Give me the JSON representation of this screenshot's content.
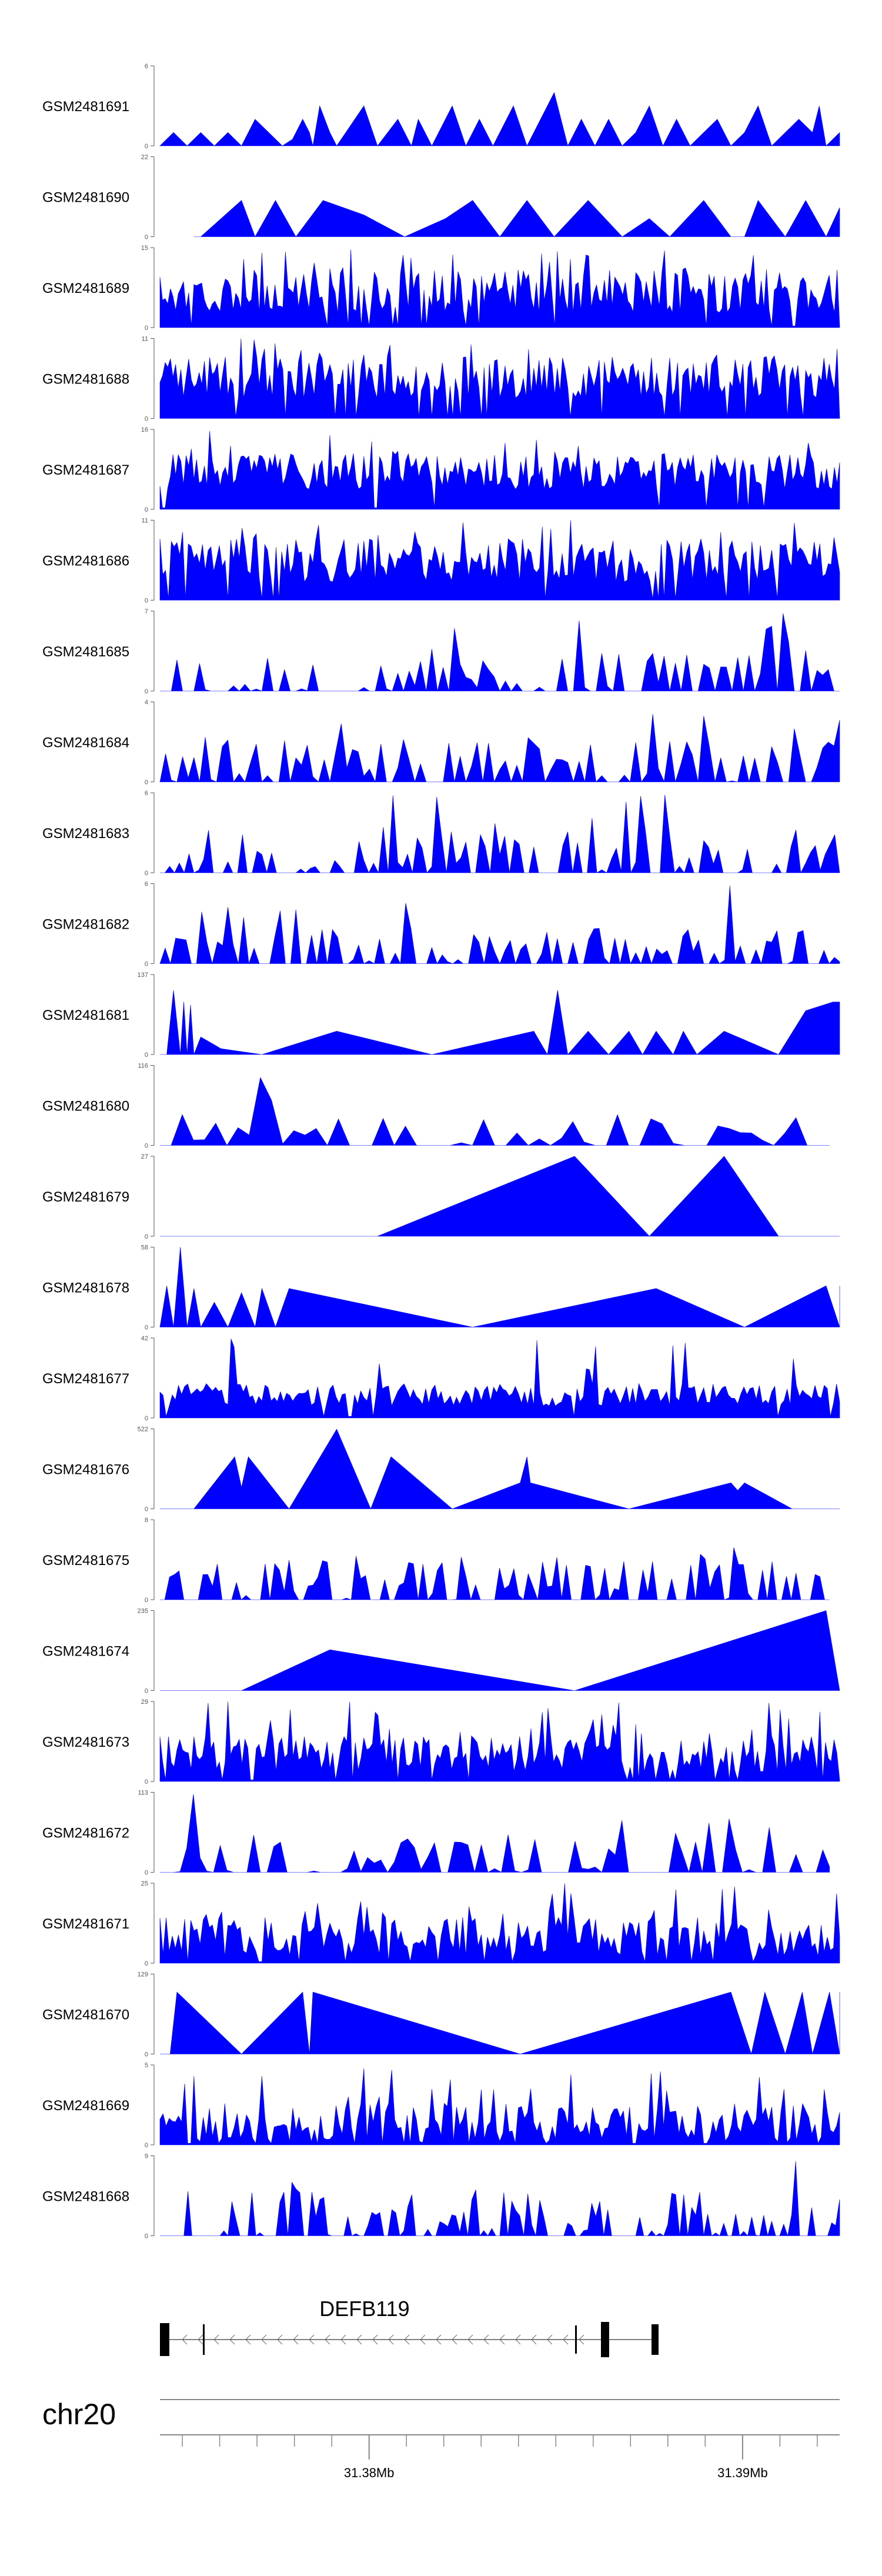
{
  "chart_data": {
    "type": "area",
    "title": "",
    "xlabel": "",
    "ylabel": "",
    "series_color": "#0000ff",
    "xlim": [
      31.3744,
      31.3926
    ],
    "tracks": [
      {
        "name": "GSM2481691",
        "ymax": "6",
        "ymin": "0",
        "max": 6,
        "profile": [
          [
            0.0,
            0
          ],
          [
            0.02,
            1
          ],
          [
            0.04,
            0
          ],
          [
            0.06,
            1
          ],
          [
            0.08,
            0
          ],
          [
            0.1,
            1
          ],
          [
            0.12,
            0
          ],
          [
            0.14,
            2
          ],
          [
            0.16,
            1
          ],
          [
            0.18,
            0
          ],
          [
            0.195,
            0.5
          ],
          [
            0.21,
            2
          ],
          [
            0.22,
            1
          ],
          [
            0.225,
            0
          ],
          [
            0.235,
            3
          ],
          [
            0.25,
            1
          ],
          [
            0.26,
            0
          ],
          [
            0.3,
            3
          ],
          [
            0.32,
            0
          ],
          [
            0.35,
            2
          ],
          [
            0.37,
            0
          ],
          [
            0.38,
            2
          ],
          [
            0.4,
            0
          ],
          [
            0.41,
            1
          ],
          [
            0.43,
            3
          ],
          [
            0.45,
            0
          ],
          [
            0.47,
            2
          ],
          [
            0.49,
            0
          ],
          [
            0.5,
            1
          ],
          [
            0.52,
            3
          ],
          [
            0.54,
            0
          ],
          [
            0.58,
            4
          ],
          [
            0.6,
            0
          ],
          [
            0.62,
            2
          ],
          [
            0.64,
            0
          ],
          [
            0.66,
            2
          ],
          [
            0.68,
            0
          ],
          [
            0.7,
            1
          ],
          [
            0.72,
            3
          ],
          [
            0.74,
            0
          ],
          [
            0.76,
            2
          ],
          [
            0.78,
            0
          ],
          [
            0.8,
            1
          ],
          [
            0.82,
            2
          ],
          [
            0.84,
            0
          ],
          [
            0.86,
            1
          ],
          [
            0.88,
            3
          ],
          [
            0.9,
            0
          ],
          [
            0.92,
            1
          ],
          [
            0.94,
            2
          ],
          [
            0.96,
            1
          ],
          [
            0.97,
            3
          ],
          [
            0.98,
            0
          ],
          [
            1.0,
            1
          ]
        ]
      },
      {
        "name": "GSM2481690",
        "ymax": "22",
        "ymin": "0",
        "max": 22,
        "profile": [
          [
            0.05,
            0
          ],
          [
            0.06,
            0
          ],
          [
            0.12,
            10
          ],
          [
            0.14,
            0
          ],
          [
            0.17,
            10
          ],
          [
            0.2,
            0
          ],
          [
            0.24,
            10
          ],
          [
            0.3,
            6
          ],
          [
            0.36,
            0
          ],
          [
            0.42,
            5
          ],
          [
            0.46,
            10
          ],
          [
            0.5,
            0
          ],
          [
            0.54,
            10
          ],
          [
            0.58,
            0
          ],
          [
            0.63,
            10
          ],
          [
            0.68,
            0
          ],
          [
            0.72,
            5
          ],
          [
            0.75,
            0
          ],
          [
            0.8,
            10
          ],
          [
            0.84,
            0
          ],
          [
            0.86,
            0
          ],
          [
            0.88,
            10
          ],
          [
            0.92,
            0
          ],
          [
            0.95,
            10
          ],
          [
            0.98,
            0
          ],
          [
            1.0,
            8
          ]
        ]
      },
      {
        "name": "GSM2481689",
        "ymax": "15",
        "ymin": "0",
        "max": 15,
        "seed": 17,
        "density": 260,
        "base": 0.18,
        "amp": 0.55
      },
      {
        "name": "GSM2481688",
        "ymax": "11",
        "ymin": "0",
        "max": 11,
        "seed": 23,
        "density": 260,
        "base": 0.25,
        "amp": 0.55
      },
      {
        "name": "GSM2481687",
        "ymax": "16",
        "ymin": "0",
        "max": 16,
        "seed": 31,
        "density": 260,
        "base": 0.25,
        "amp": 0.45
      },
      {
        "name": "GSM2481686",
        "ymax": "11",
        "ymin": "0",
        "max": 11,
        "seed": 41,
        "density": 240,
        "base": 0.22,
        "amp": 0.55
      },
      {
        "name": "GSM2481685",
        "ymax": "7",
        "ymin": "0",
        "max": 7,
        "seed": 53,
        "density": 120,
        "base": 0.0,
        "amp": 0.55
      },
      {
        "name": "GSM2481684",
        "ymax": "4",
        "ymin": "0",
        "max": 4,
        "seed": 61,
        "density": 120,
        "base": 0.0,
        "amp": 0.6
      },
      {
        "name": "GSM2481683",
        "ymax": "6",
        "ymin": "0",
        "max": 6,
        "seed": 67,
        "density": 140,
        "base": 0.0,
        "amp": 0.55
      },
      {
        "name": "GSM2481682",
        "ymax": "6",
        "ymin": "0",
        "max": 6,
        "seed": 71,
        "density": 130,
        "base": 0.0,
        "amp": 0.45
      },
      {
        "name": "GSM2481681",
        "ymax": "137",
        "ymin": "0",
        "max": 137,
        "profile": [
          [
            0.0,
            0
          ],
          [
            0.01,
            0
          ],
          [
            0.02,
            110
          ],
          [
            0.03,
            0
          ],
          [
            0.035,
            90
          ],
          [
            0.04,
            0
          ],
          [
            0.045,
            85
          ],
          [
            0.05,
            0
          ],
          [
            0.06,
            30
          ],
          [
            0.09,
            10
          ],
          [
            0.15,
            0
          ],
          [
            0.26,
            40
          ],
          [
            0.4,
            0
          ],
          [
            0.55,
            40
          ],
          [
            0.57,
            0
          ],
          [
            0.585,
            110
          ],
          [
            0.6,
            0
          ],
          [
            0.63,
            40
          ],
          [
            0.66,
            0
          ],
          [
            0.69,
            40
          ],
          [
            0.71,
            0
          ],
          [
            0.73,
            40
          ],
          [
            0.755,
            0
          ],
          [
            0.77,
            40
          ],
          [
            0.79,
            0
          ],
          [
            0.83,
            40
          ],
          [
            0.91,
            0
          ],
          [
            0.95,
            75
          ],
          [
            0.99,
            90
          ],
          [
            1.0,
            90
          ],
          [
            1.0,
            0
          ]
        ]
      },
      {
        "name": "GSM2481680",
        "ymax": "116",
        "ymin": "0",
        "max": 116,
        "seed": 89,
        "density": 60,
        "base": 0.0,
        "amp": 0.4,
        "end": 0.985
      },
      {
        "name": "GSM2481679",
        "ymax": "27",
        "ymin": "0",
        "max": 27,
        "profile": [
          [
            0.0,
            0
          ],
          [
            0.32,
            0
          ],
          [
            0.61,
            27
          ],
          [
            0.72,
            0
          ],
          [
            0.83,
            27
          ],
          [
            0.91,
            0
          ],
          [
            1.0,
            0
          ]
        ]
      },
      {
        "name": "GSM2481678",
        "ymax": "58",
        "ymin": "0",
        "max": 58,
        "profile": [
          [
            0.0,
            0
          ],
          [
            0.01,
            30
          ],
          [
            0.02,
            0
          ],
          [
            0.03,
            58
          ],
          [
            0.04,
            0
          ],
          [
            0.05,
            28
          ],
          [
            0.06,
            0
          ],
          [
            0.08,
            18
          ],
          [
            0.1,
            0
          ],
          [
            0.12,
            25
          ],
          [
            0.14,
            0
          ],
          [
            0.15,
            28
          ],
          [
            0.17,
            0
          ],
          [
            0.19,
            28
          ],
          [
            0.46,
            0
          ],
          [
            0.73,
            28
          ],
          [
            0.86,
            0
          ],
          [
            0.98,
            30
          ],
          [
            1.0,
            0
          ],
          [
            1.0,
            30
          ]
        ]
      },
      {
        "name": "GSM2481677",
        "ymax": "42",
        "ymin": "0",
        "max": 42,
        "seed": 103,
        "density": 220,
        "base": 0.15,
        "amp": 0.28
      },
      {
        "name": "GSM2481676",
        "ymax": "522",
        "ymin": "0",
        "max": 522,
        "profile": [
          [
            0.0,
            0
          ],
          [
            0.05,
            0
          ],
          [
            0.11,
            340
          ],
          [
            0.12,
            140
          ],
          [
            0.13,
            340
          ],
          [
            0.19,
            0
          ],
          [
            0.26,
            520
          ],
          [
            0.31,
            0
          ],
          [
            0.34,
            340
          ],
          [
            0.43,
            0
          ],
          [
            0.53,
            170
          ],
          [
            0.54,
            340
          ],
          [
            0.545,
            170
          ],
          [
            0.69,
            0
          ],
          [
            0.84,
            170
          ],
          [
            0.85,
            120
          ],
          [
            0.86,
            170
          ],
          [
            0.93,
            0
          ],
          [
            1.0,
            0
          ]
        ]
      },
      {
        "name": "GSM2481675",
        "ymax": "8",
        "ymin": "0",
        "max": 8,
        "seed": 131,
        "density": 140,
        "base": 0.0,
        "amp": 0.55,
        "end": 0.985
      },
      {
        "name": "GSM2481674",
        "ymax": "235",
        "ymin": "0",
        "max": 235,
        "profile": [
          [
            0.0,
            0
          ],
          [
            0.12,
            0
          ],
          [
            0.25,
            120
          ],
          [
            0.61,
            0
          ],
          [
            0.98,
            235
          ],
          [
            1.0,
            0
          ]
        ]
      },
      {
        "name": "GSM2481673",
        "ymax": "29",
        "ymin": "0",
        "max": 29,
        "seed": 151,
        "density": 240,
        "base": 0.12,
        "amp": 0.45
      },
      {
        "name": "GSM2481672",
        "ymax": "113",
        "ymin": "0",
        "max": 113,
        "seed": 163,
        "density": 100,
        "base": 0.0,
        "amp": 0.5,
        "end": 0.985
      },
      {
        "name": "GSM2481671",
        "ymax": "25",
        "ymin": "0",
        "max": 25,
        "seed": 173,
        "density": 220,
        "base": 0.08,
        "amp": 0.5
      },
      {
        "name": "GSM2481670",
        "ymax": "129",
        "ymin": "0",
        "max": 129,
        "profile": [
          [
            0.0,
            0
          ],
          [
            0.015,
            0
          ],
          [
            0.025,
            100
          ],
          [
            0.12,
            0
          ],
          [
            0.21,
            100
          ],
          [
            0.22,
            0
          ],
          [
            0.225,
            100
          ],
          [
            0.53,
            0
          ],
          [
            0.84,
            100
          ],
          [
            0.87,
            0
          ],
          [
            0.89,
            100
          ],
          [
            0.92,
            0
          ],
          [
            0.945,
            100
          ],
          [
            0.96,
            0
          ],
          [
            0.985,
            100
          ],
          [
            1.0,
            0
          ],
          [
            1.0,
            100
          ]
        ]
      },
      {
        "name": "GSM2481669",
        "ymax": "5",
        "ymin": "0",
        "max": 5,
        "seed": 191,
        "density": 220,
        "base": 0.02,
        "amp": 0.5
      },
      {
        "name": "GSM2481668",
        "ymax": "9",
        "ymin": "0",
        "max": 9,
        "seed": 199,
        "density": 170,
        "base": 0.0,
        "amp": 0.55
      }
    ],
    "gene": {
      "name": "DEFB119",
      "strand": "-"
    },
    "chromosome": "chr20",
    "axis_ticks": [
      {
        "value": 31.38,
        "label": "31.38Mb"
      },
      {
        "value": 31.39,
        "label": "31.39Mb"
      }
    ]
  }
}
